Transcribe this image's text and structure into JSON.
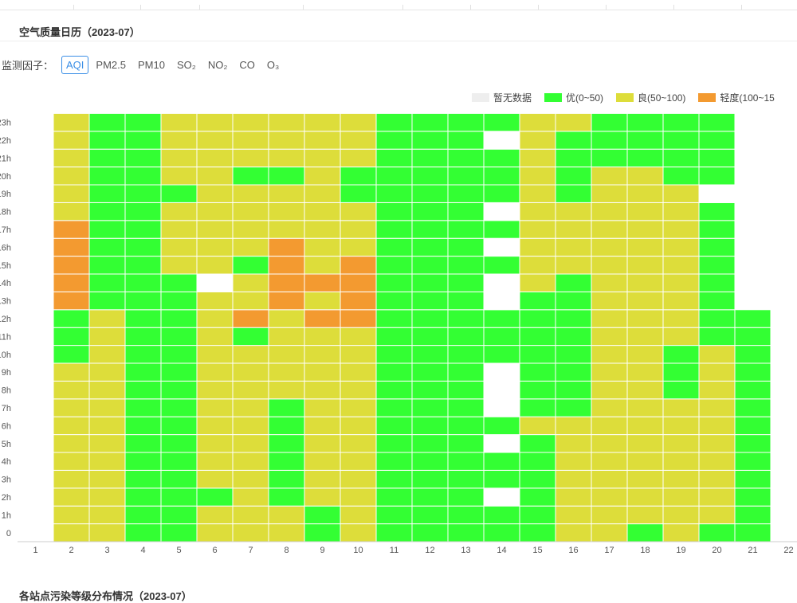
{
  "header": {
    "title": "空气质量日历（2023-07）",
    "factor_label": "监测因子：",
    "factors": [
      {
        "label": "AQI",
        "active": true
      },
      {
        "label": "PM2.5",
        "active": false
      },
      {
        "label": "PM10",
        "active": false
      },
      {
        "label": "SO₂",
        "active": false
      },
      {
        "label": "NO₂",
        "active": false
      },
      {
        "label": "CO",
        "active": false
      },
      {
        "label": "O₃",
        "active": false
      }
    ]
  },
  "legend": [
    {
      "label": "暂无数据",
      "color": "#eeeeee"
    },
    {
      "label": "优(0~50)",
      "color": "#33ff33"
    },
    {
      "label": "良(50~100)",
      "color": "#dddd3a"
    },
    {
      "label": "轻度(100~15",
      "color": "#f39a30"
    }
  ],
  "chart_data": {
    "type": "heatmap",
    "x": [
      "1",
      "2",
      "3",
      "4",
      "5",
      "6",
      "7",
      "8",
      "9",
      "10",
      "11",
      "12",
      "13",
      "14",
      "15",
      "16",
      "17",
      "18",
      "19",
      "20",
      "21",
      "22"
    ],
    "y": [
      "0",
      "1h",
      "2h",
      "3h",
      "4h",
      "5h",
      "6h",
      "7h",
      "8h",
      "9h",
      "10h",
      "11h",
      "12h",
      "13h",
      "14h",
      "15h",
      "16h",
      "17h",
      "18h",
      "19h",
      "20h",
      "21h",
      "22h",
      "23h"
    ],
    "categories": {
      "0": "暂无数据",
      "1": "优",
      "2": "良",
      "3": "轻度"
    },
    "values": [
      [
        2,
        2,
        1,
        1,
        2,
        2,
        2,
        1,
        2,
        1,
        1,
        1,
        1,
        1,
        2,
        2,
        1,
        2,
        1,
        1
      ],
      [
        2,
        2,
        1,
        1,
        2,
        2,
        2,
        1,
        2,
        1,
        1,
        1,
        1,
        1,
        2,
        2,
        2,
        2,
        2,
        1
      ],
      [
        2,
        2,
        1,
        1,
        1,
        2,
        1,
        2,
        2,
        1,
        1,
        1,
        0,
        1,
        2,
        2,
        2,
        2,
        2,
        1
      ],
      [
        2,
        2,
        1,
        1,
        2,
        2,
        1,
        2,
        2,
        1,
        1,
        1,
        1,
        1,
        2,
        2,
        2,
        2,
        2,
        1
      ],
      [
        2,
        2,
        1,
        1,
        2,
        2,
        1,
        2,
        2,
        1,
        1,
        1,
        1,
        1,
        2,
        2,
        2,
        2,
        2,
        1
      ],
      [
        2,
        2,
        1,
        1,
        2,
        2,
        1,
        2,
        2,
        1,
        1,
        1,
        0,
        1,
        2,
        2,
        2,
        2,
        2,
        1
      ],
      [
        2,
        2,
        1,
        1,
        2,
        2,
        1,
        2,
        2,
        1,
        1,
        1,
        1,
        2,
        2,
        2,
        2,
        2,
        2,
        1
      ],
      [
        2,
        2,
        1,
        1,
        2,
        2,
        1,
        2,
        2,
        1,
        1,
        1,
        0,
        1,
        1,
        2,
        2,
        2,
        2,
        1
      ],
      [
        2,
        2,
        1,
        1,
        2,
        2,
        2,
        2,
        2,
        1,
        1,
        1,
        0,
        1,
        1,
        2,
        2,
        1,
        2,
        1
      ],
      [
        2,
        2,
        1,
        1,
        2,
        2,
        2,
        2,
        2,
        1,
        1,
        1,
        0,
        1,
        1,
        2,
        2,
        1,
        2,
        1
      ],
      [
        1,
        2,
        1,
        1,
        2,
        2,
        2,
        2,
        2,
        1,
        1,
        1,
        1,
        1,
        1,
        2,
        2,
        1,
        2,
        1
      ],
      [
        1,
        2,
        1,
        1,
        2,
        1,
        2,
        2,
        2,
        1,
        1,
        1,
        1,
        1,
        1,
        2,
        2,
        2,
        1,
        1
      ],
      [
        1,
        2,
        1,
        1,
        2,
        3,
        2,
        3,
        3,
        1,
        1,
        1,
        1,
        1,
        1,
        2,
        2,
        2,
        1,
        1
      ],
      [
        3,
        1,
        1,
        1,
        2,
        2,
        3,
        2,
        3,
        1,
        1,
        1,
        0,
        1,
        1,
        2,
        2,
        2,
        1
      ],
      [
        3,
        1,
        1,
        1,
        0,
        2,
        3,
        3,
        3,
        1,
        1,
        1,
        0,
        2,
        1,
        2,
        2,
        2,
        1
      ],
      [
        3,
        1,
        1,
        2,
        2,
        1,
        3,
        2,
        3,
        1,
        1,
        1,
        1,
        2,
        2,
        2,
        2,
        2,
        1
      ],
      [
        3,
        1,
        1,
        2,
        2,
        2,
        3,
        2,
        2,
        1,
        1,
        1,
        0,
        2,
        2,
        2,
        2,
        2,
        1
      ],
      [
        3,
        1,
        1,
        2,
        2,
        2,
        2,
        2,
        2,
        1,
        1,
        1,
        1,
        2,
        2,
        2,
        2,
        2,
        1
      ],
      [
        2,
        1,
        1,
        2,
        2,
        2,
        2,
        2,
        2,
        1,
        1,
        1,
        0,
        2,
        2,
        2,
        2,
        2,
        1
      ],
      [
        2,
        1,
        1,
        1,
        2,
        2,
        2,
        2,
        1,
        1,
        1,
        1,
        1,
        2,
        1,
        2,
        2,
        2,
        0
      ],
      [
        2,
        1,
        1,
        2,
        2,
        1,
        1,
        2,
        1,
        1,
        1,
        1,
        1,
        2,
        1,
        2,
        2,
        1,
        1
      ],
      [
        2,
        1,
        1,
        2,
        2,
        2,
        2,
        2,
        2,
        1,
        1,
        1,
        1,
        2,
        1,
        1,
        1,
        1,
        1
      ],
      [
        2,
        1,
        1,
        2,
        2,
        2,
        2,
        2,
        2,
        1,
        1,
        1,
        0,
        2,
        1,
        1,
        1,
        1,
        1
      ],
      [
        2,
        1,
        1,
        2,
        2,
        2,
        2,
        2,
        2,
        1,
        1,
        1,
        1,
        2,
        2,
        1,
        1,
        1,
        1
      ]
    ],
    "xlabel": "",
    "ylabel": "",
    "grid": true,
    "legend_position": "top-right"
  },
  "footer": {
    "next_title": "各站点污染等级分布情况（2023-07）"
  }
}
